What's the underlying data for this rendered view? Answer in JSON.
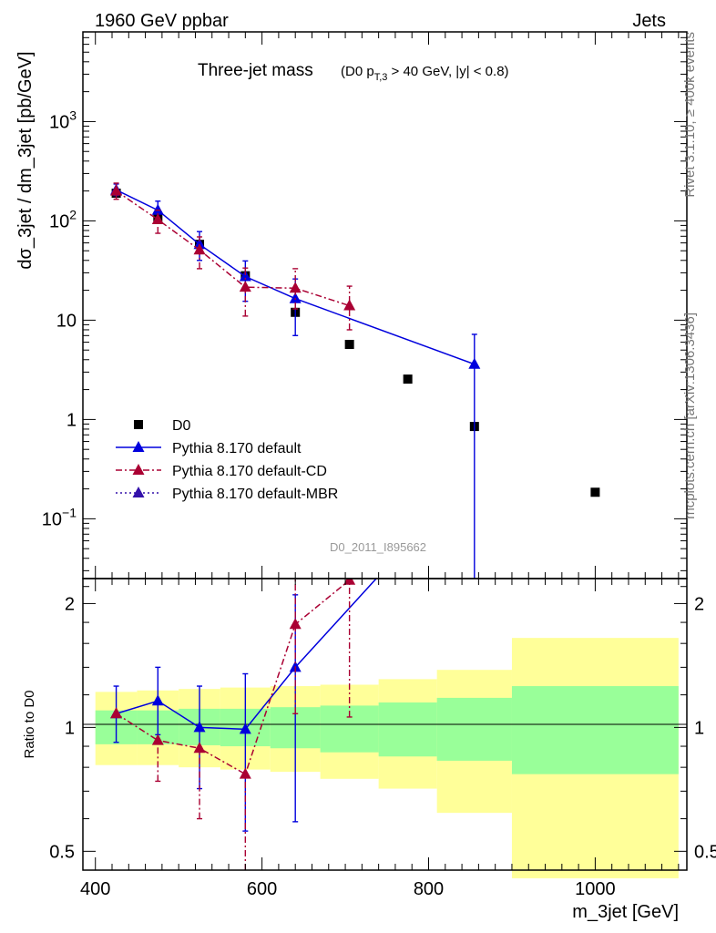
{
  "header": {
    "left": "1960 GeV ppbar",
    "right": "Jets"
  },
  "side_labels": {
    "rivet": "Rivet 3.1.10, ≥ 400k events",
    "mcplots": "mcplots.cern.ch [arXiv:1306.3436]"
  },
  "title": {
    "main": "Three-jet mass",
    "cut_prefix": "(D0 p",
    "cut_sub": "T,3",
    "cut_suffix": " > 40 GeV, |y| < 0.8)"
  },
  "watermark": "D0_2011_I895662",
  "chart_data": [
    {
      "type": "scatter",
      "panel": "main",
      "xlabel": "m_3jet [GeV]",
      "ylabel": "dσ_3jet / dm_3jet [pb/GeV]",
      "xlim": [
        385,
        1110
      ],
      "ylim": [
        0.025,
        8000
      ],
      "yscale": "log",
      "yticks": [
        {
          "v": 0.1,
          "base": "10",
          "exp": "−1"
        },
        {
          "v": 1,
          "base": "1",
          "exp": ""
        },
        {
          "v": 10,
          "base": "10",
          "exp": ""
        },
        {
          "v": 100,
          "base": "10",
          "exp": "2"
        },
        {
          "v": 1000,
          "base": "10",
          "exp": "3"
        }
      ],
      "series": [
        {
          "name": "D0",
          "style": "data",
          "color": "#000000",
          "x": [
            425,
            475,
            525,
            580,
            640,
            705,
            775,
            855,
            1000
          ],
          "y": [
            190,
            110,
            58,
            28,
            12,
            5.7,
            2.55,
            0.85,
            0.185
          ],
          "yerr": [
            [
              0,
              0
            ],
            [
              0,
              0
            ],
            [
              0,
              0
            ],
            [
              0,
              0
            ],
            [
              0,
              0
            ],
            [
              0,
              0
            ],
            [
              0,
              0
            ],
            [
              0,
              0
            ],
            [
              0,
              0
            ]
          ]
        },
        {
          "name": "Pythia 8.170 default",
          "style": "solid",
          "color": "#0000dd",
          "x": [
            425,
            475,
            525,
            580,
            640,
            855
          ],
          "y": [
            205,
            128,
            58,
            27.5,
            16.5,
            3.6
          ],
          "yerr": [
            [
              25,
              30
            ],
            [
              25,
              30
            ],
            [
              18,
              20
            ],
            [
              12,
              12
            ],
            [
              9.5,
              9.5
            ],
            [
              3.575,
              3.6
            ]
          ]
        },
        {
          "name": "Pythia 8.170 default-CD",
          "style": "dashdot",
          "color": "#aa0033",
          "x": [
            425,
            475,
            525,
            580,
            640,
            705
          ],
          "y": [
            200,
            103,
            51,
            21.5,
            21,
            14
          ],
          "yerr": [
            [
              35,
              40
            ],
            [
              28,
              25
            ],
            [
              18,
              18
            ],
            [
              10.5,
              12
            ],
            [
              8,
              12
            ],
            [
              6,
              8
            ]
          ]
        },
        {
          "name": "Pythia 8.170 default-MBR",
          "style": "dotted",
          "color": "#3311aa",
          "x": [],
          "y": [],
          "yerr": []
        }
      ]
    },
    {
      "type": "line",
      "panel": "ratio",
      "xlabel": "m_3jet [GeV]",
      "ylabel": "Ratio to D0",
      "xlim": [
        385,
        1110
      ],
      "ylim": [
        0.45,
        2.3
      ],
      "yscale": "log",
      "yticks": [
        0.5,
        1,
        2
      ],
      "xticks": [
        400,
        600,
        800,
        1000
      ],
      "bands": [
        {
          "x0": 400,
          "x1": 450,
          "inner": [
            0.91,
            1.1
          ],
          "outer": [
            0.81,
            1.22
          ]
        },
        {
          "x0": 450,
          "x1": 500,
          "inner": [
            0.91,
            1.1
          ],
          "outer": [
            0.81,
            1.23
          ]
        },
        {
          "x0": 500,
          "x1": 550,
          "inner": [
            0.905,
            1.11
          ],
          "outer": [
            0.8,
            1.24
          ]
        },
        {
          "x0": 550,
          "x1": 610,
          "inner": [
            0.9,
            1.11
          ],
          "outer": [
            0.79,
            1.25
          ]
        },
        {
          "x0": 610,
          "x1": 670,
          "inner": [
            0.89,
            1.12
          ],
          "outer": [
            0.78,
            1.26
          ]
        },
        {
          "x0": 670,
          "x1": 740,
          "inner": [
            0.87,
            1.13
          ],
          "outer": [
            0.75,
            1.27
          ]
        },
        {
          "x0": 740,
          "x1": 810,
          "inner": [
            0.85,
            1.15
          ],
          "outer": [
            0.71,
            1.31
          ]
        },
        {
          "x0": 810,
          "x1": 900,
          "inner": [
            0.83,
            1.18
          ],
          "outer": [
            0.62,
            1.38
          ]
        },
        {
          "x0": 900,
          "x1": 1100,
          "inner": [
            0.77,
            1.26
          ],
          "outer": [
            0.43,
            1.65
          ]
        }
      ],
      "series": [
        {
          "name": "Pythia 8.170 default",
          "style": "solid",
          "color": "#0000dd",
          "x": [
            425,
            475,
            525,
            580,
            640,
            855
          ],
          "y": [
            1.08,
            1.16,
            1.0,
            0.99,
            1.4,
            4.2
          ],
          "yerr": [
            [
              0.16,
              0.18
            ],
            [
              0.2,
              0.24
            ],
            [
              0.29,
              0.26
            ],
            [
              0.43,
              0.36
            ],
            [
              0.81,
              0.7
            ],
            [
              0,
              0
            ]
          ]
        },
        {
          "name": "Pythia 8.170 default-CD",
          "style": "dashdot",
          "color": "#aa0033",
          "x": [
            425,
            475,
            525,
            580,
            640,
            705
          ],
          "y": [
            1.08,
            0.93,
            0.89,
            0.77,
            1.78,
            2.28
          ],
          "yerr": [
            [
              0,
              0
            ],
            [
              0.19,
              0
            ],
            [
              0.29,
              0
            ],
            [
              0.37,
              0
            ],
            [
              0.7,
              0.53
            ],
            [
              1.22,
              0.5
            ]
          ]
        }
      ]
    }
  ]
}
